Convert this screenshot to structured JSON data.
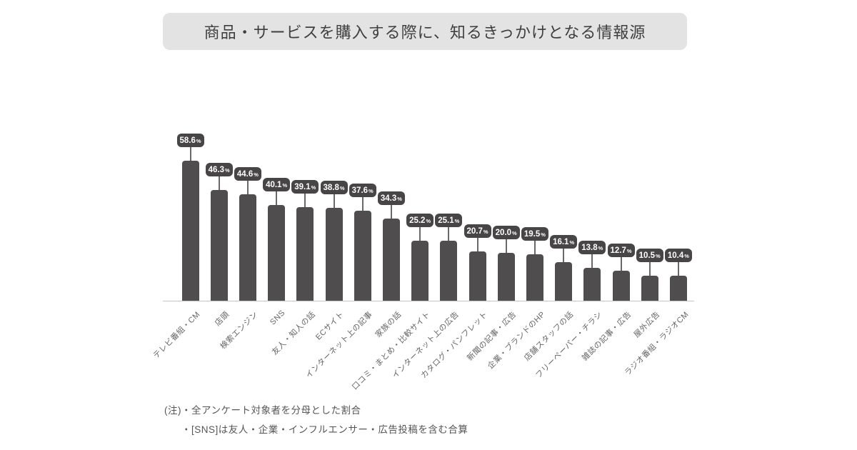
{
  "title": "商品・サービスを購入する際に、知るきっかけとなる情報源",
  "chart_data": {
    "type": "bar",
    "orientation": "vertical",
    "title": "商品・サービスを購入する際に、知るきっかけとなる情報源",
    "xlabel": "",
    "ylabel": "",
    "ylim": [
      0,
      60
    ],
    "grid": false,
    "legend": "none",
    "value_suffix": "%",
    "categories": [
      "テレビ番組・CM",
      "店頭",
      "検索エンジン",
      "SNS",
      "友人・知人の話",
      "ECサイト",
      "インターネット上の記事",
      "家族の話",
      "口コミ・まとめ・比較サイト",
      "インターネット上の広告",
      "カタログ・パンフレット",
      "新聞の記事・広告",
      "企業・ブランドのHP",
      "店舗スタッフの話",
      "フリーペーパー・チラシ",
      "雑誌の記事・広告",
      "屋外広告",
      "ラジオ番組・ラジオCM"
    ],
    "values": [
      58.6,
      46.3,
      44.6,
      40.1,
      39.1,
      38.8,
      37.6,
      34.3,
      25.2,
      25.1,
      20.7,
      20.0,
      19.5,
      16.1,
      13.8,
      12.7,
      10.5,
      10.4
    ]
  },
  "footnotes": [
    "(注)・全アンケート対象者を分母とした割合",
    "・[SNS]は友人・企業・インフルエンサー・広告投稿を含む合算"
  ],
  "colors": {
    "bar": "#504d4e",
    "bubble_bg": "#484546",
    "bubble_text": "#ffffff",
    "stem": "#6b6868",
    "baseline": "#c6c6c6",
    "title_bg": "#e3e3e3",
    "title_text": "#3f3f3f",
    "category_label": "#666666",
    "footnote_text": "#565656"
  }
}
